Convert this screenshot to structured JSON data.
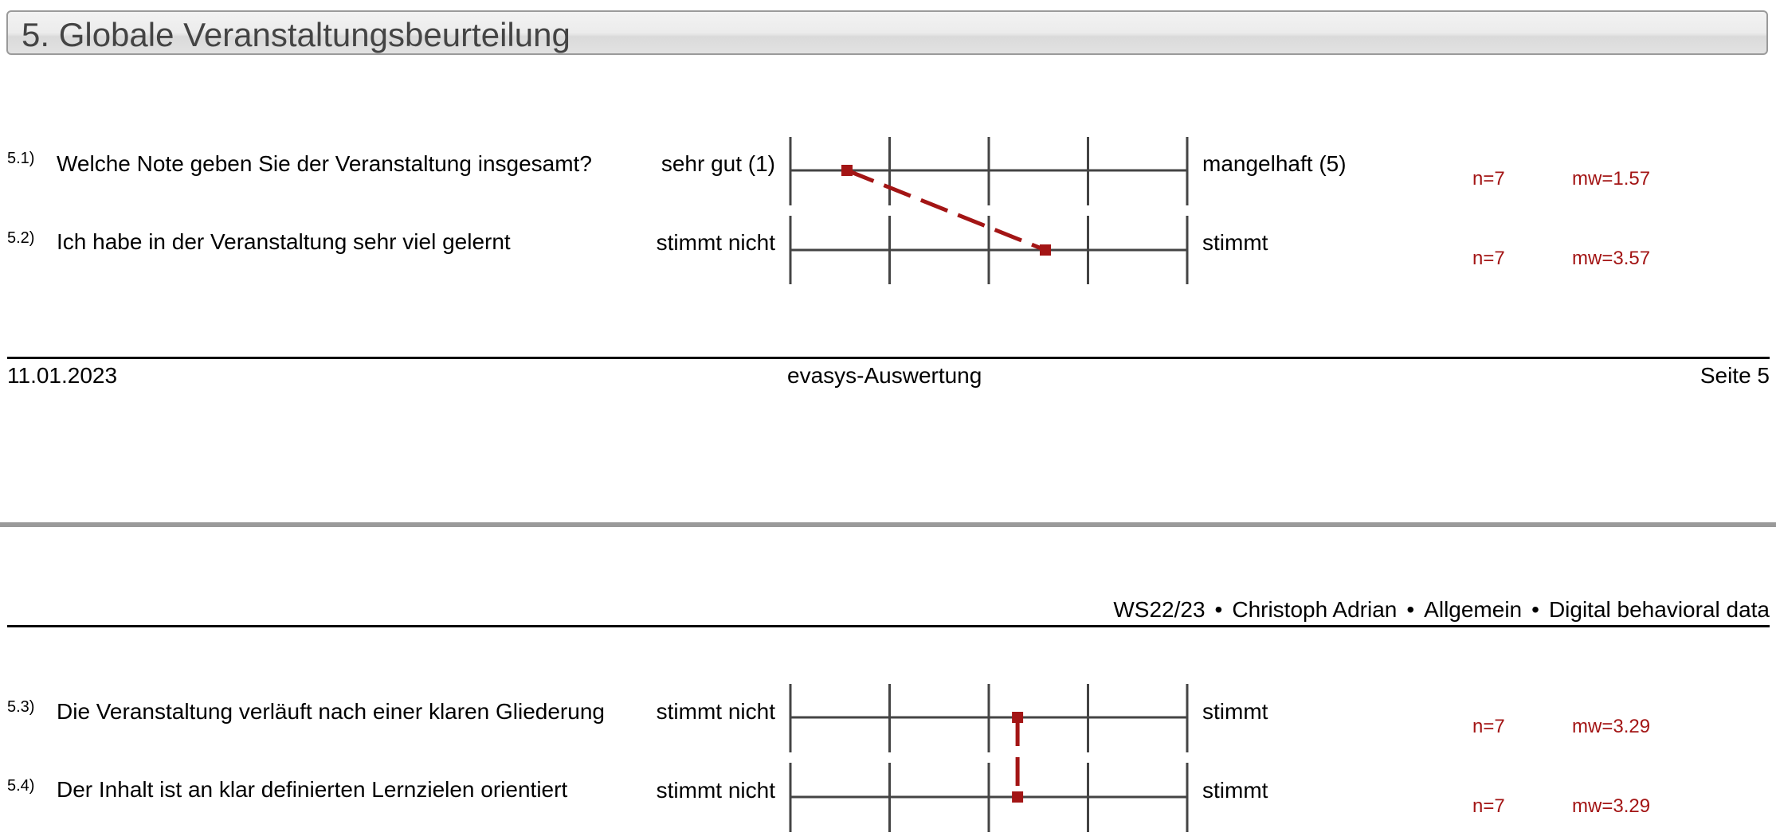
{
  "section": {
    "title": "5. Globale Veranstaltungsbeurteilung"
  },
  "questions_top": [
    {
      "num": "5.1)",
      "text": "Welche Note geben Sie der Veranstaltung insgesamt?",
      "left_label": "sehr gut (1)",
      "right_label": "mangelhaft (5)",
      "n": "n=7",
      "mw": "mw=1.57"
    },
    {
      "num": "5.2)",
      "text": "Ich habe in der Veranstaltung sehr viel gelernt",
      "left_label": "stimmt nicht",
      "right_label": "stimmt",
      "n": "n=7",
      "mw": "mw=3.57"
    }
  ],
  "footer": {
    "date": "11.01.2023",
    "center": "evasys-Auswertung",
    "page": "Seite 5"
  },
  "meta": {
    "semester": "WS22/23",
    "lecturer": "Christoph Adrian",
    "category": "Allgemein",
    "course": "Digital behavioral data",
    "separator": "•"
  },
  "questions_bottom": [
    {
      "num": "5.3)",
      "text": "Die Veranstaltung verläuft nach einer klaren Gliederung",
      "left_label": "stimmt nicht",
      "right_label": "stimmt",
      "n": "n=7",
      "mw": "mw=3.29"
    },
    {
      "num": "5.4)",
      "text": "Der Inhalt ist an klar definierten Lernzielen orientiert",
      "left_label": "stimmt nicht",
      "right_label": "stimmt",
      "n": "n=7",
      "mw": "mw=3.29"
    }
  ],
  "chart_data": [
    {
      "type": "line",
      "title": "",
      "scale_points": 5,
      "x": [
        "5.1)",
        "5.2)"
      ],
      "series": [
        {
          "values": [
            1.57,
            3.57
          ]
        }
      ],
      "ylim": [
        1,
        5
      ],
      "colors": {
        "line": "#a31515",
        "axis": "#444444"
      }
    },
    {
      "type": "line",
      "title": "",
      "scale_points": 5,
      "x": [
        "5.3)",
        "5.4)"
      ],
      "series": [
        {
          "values": [
            3.29,
            3.29
          ]
        }
      ],
      "ylim": [
        1,
        5
      ],
      "colors": {
        "line": "#a31515",
        "axis": "#444444"
      }
    }
  ]
}
